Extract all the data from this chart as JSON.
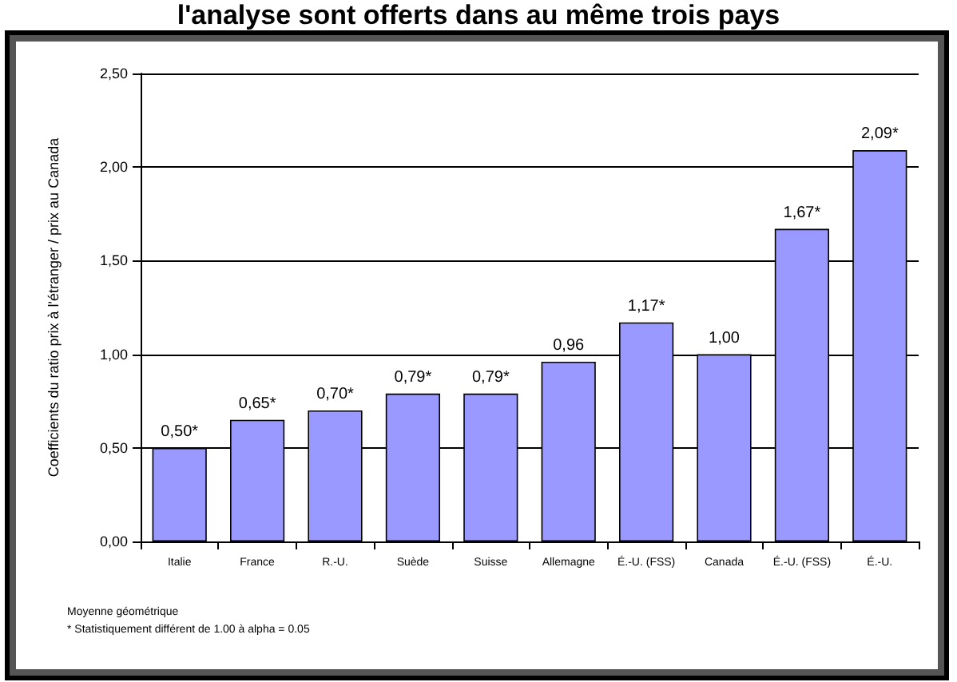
{
  "chart_data": {
    "type": "bar",
    "title": "l'analyse sont offerts dans au même trois pays",
    "ylabel": "Coefficients du ratio prix à l'étranger / prix au Canada",
    "categories": [
      "Italie",
      "France",
      "R.-U.",
      "Suède",
      "Suisse",
      "Allemagne",
      "É.-U. (FSS)",
      "Canada",
      "É.-U. (FSS)",
      "É.-U."
    ],
    "values": [
      0.5,
      0.65,
      0.7,
      0.79,
      0.79,
      0.96,
      1.17,
      1.0,
      1.67,
      2.09
    ],
    "value_labels": [
      "0,50*",
      "0,65*",
      "0,70*",
      "0,79*",
      "0,79*",
      "0,96",
      "1,17*",
      "1,00",
      "1,67*",
      "2,09*"
    ],
    "color": "#9999ff",
    "ylim": [
      0,
      2.5
    ],
    "yticks": [
      {
        "value": 0,
        "label": "0,00"
      },
      {
        "value": 0.5,
        "label": "0,50"
      },
      {
        "value": 1,
        "label": "1,00"
      },
      {
        "value": 1.5,
        "label": "1,50"
      },
      {
        "value": 2,
        "label": "2,00"
      },
      {
        "value": 2.5,
        "label": "2,50"
      }
    ],
    "grid": "y",
    "annotations": [
      "Moyenne géométrique",
      "* Statistiquement différent de 1.00 à alpha = 0.05"
    ]
  }
}
